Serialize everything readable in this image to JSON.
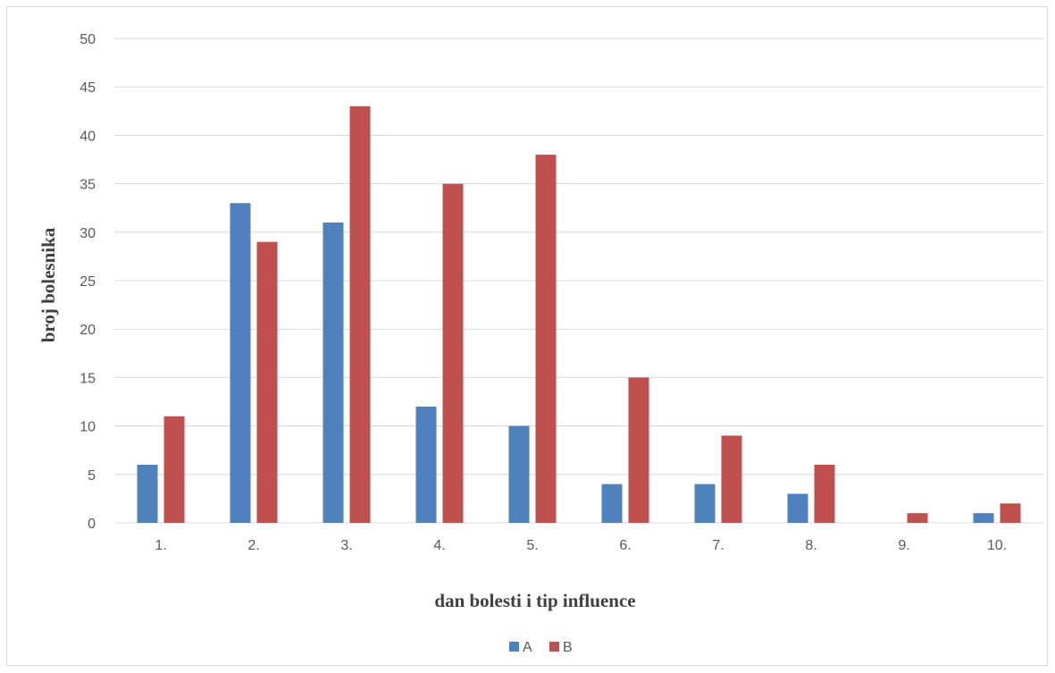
{
  "chart_data": {
    "type": "bar",
    "categories": [
      "1.",
      "2.",
      "3.",
      "4.",
      "5.",
      "6.",
      "7.",
      "8.",
      "9.",
      "10."
    ],
    "series": [
      {
        "name": "A",
        "values": [
          6,
          33,
          31,
          12,
          10,
          4,
          4,
          3,
          0,
          1
        ],
        "color": "#4f81bd"
      },
      {
        "name": "B",
        "values": [
          11,
          29,
          43,
          35,
          38,
          15,
          9,
          6,
          1,
          2
        ],
        "color": "#c0504d"
      }
    ],
    "title": "",
    "xlabel": "dan bolesti i tip influence",
    "ylabel": "broj bolesnika",
    "ylim": [
      0,
      50
    ],
    "yticks": [
      0,
      5,
      10,
      15,
      20,
      25,
      30,
      35,
      40,
      45,
      50
    ],
    "grid": true,
    "legend": "bottom"
  },
  "colors": {
    "gridline": "#d9d9d9",
    "frame": "#d9d9d9"
  }
}
